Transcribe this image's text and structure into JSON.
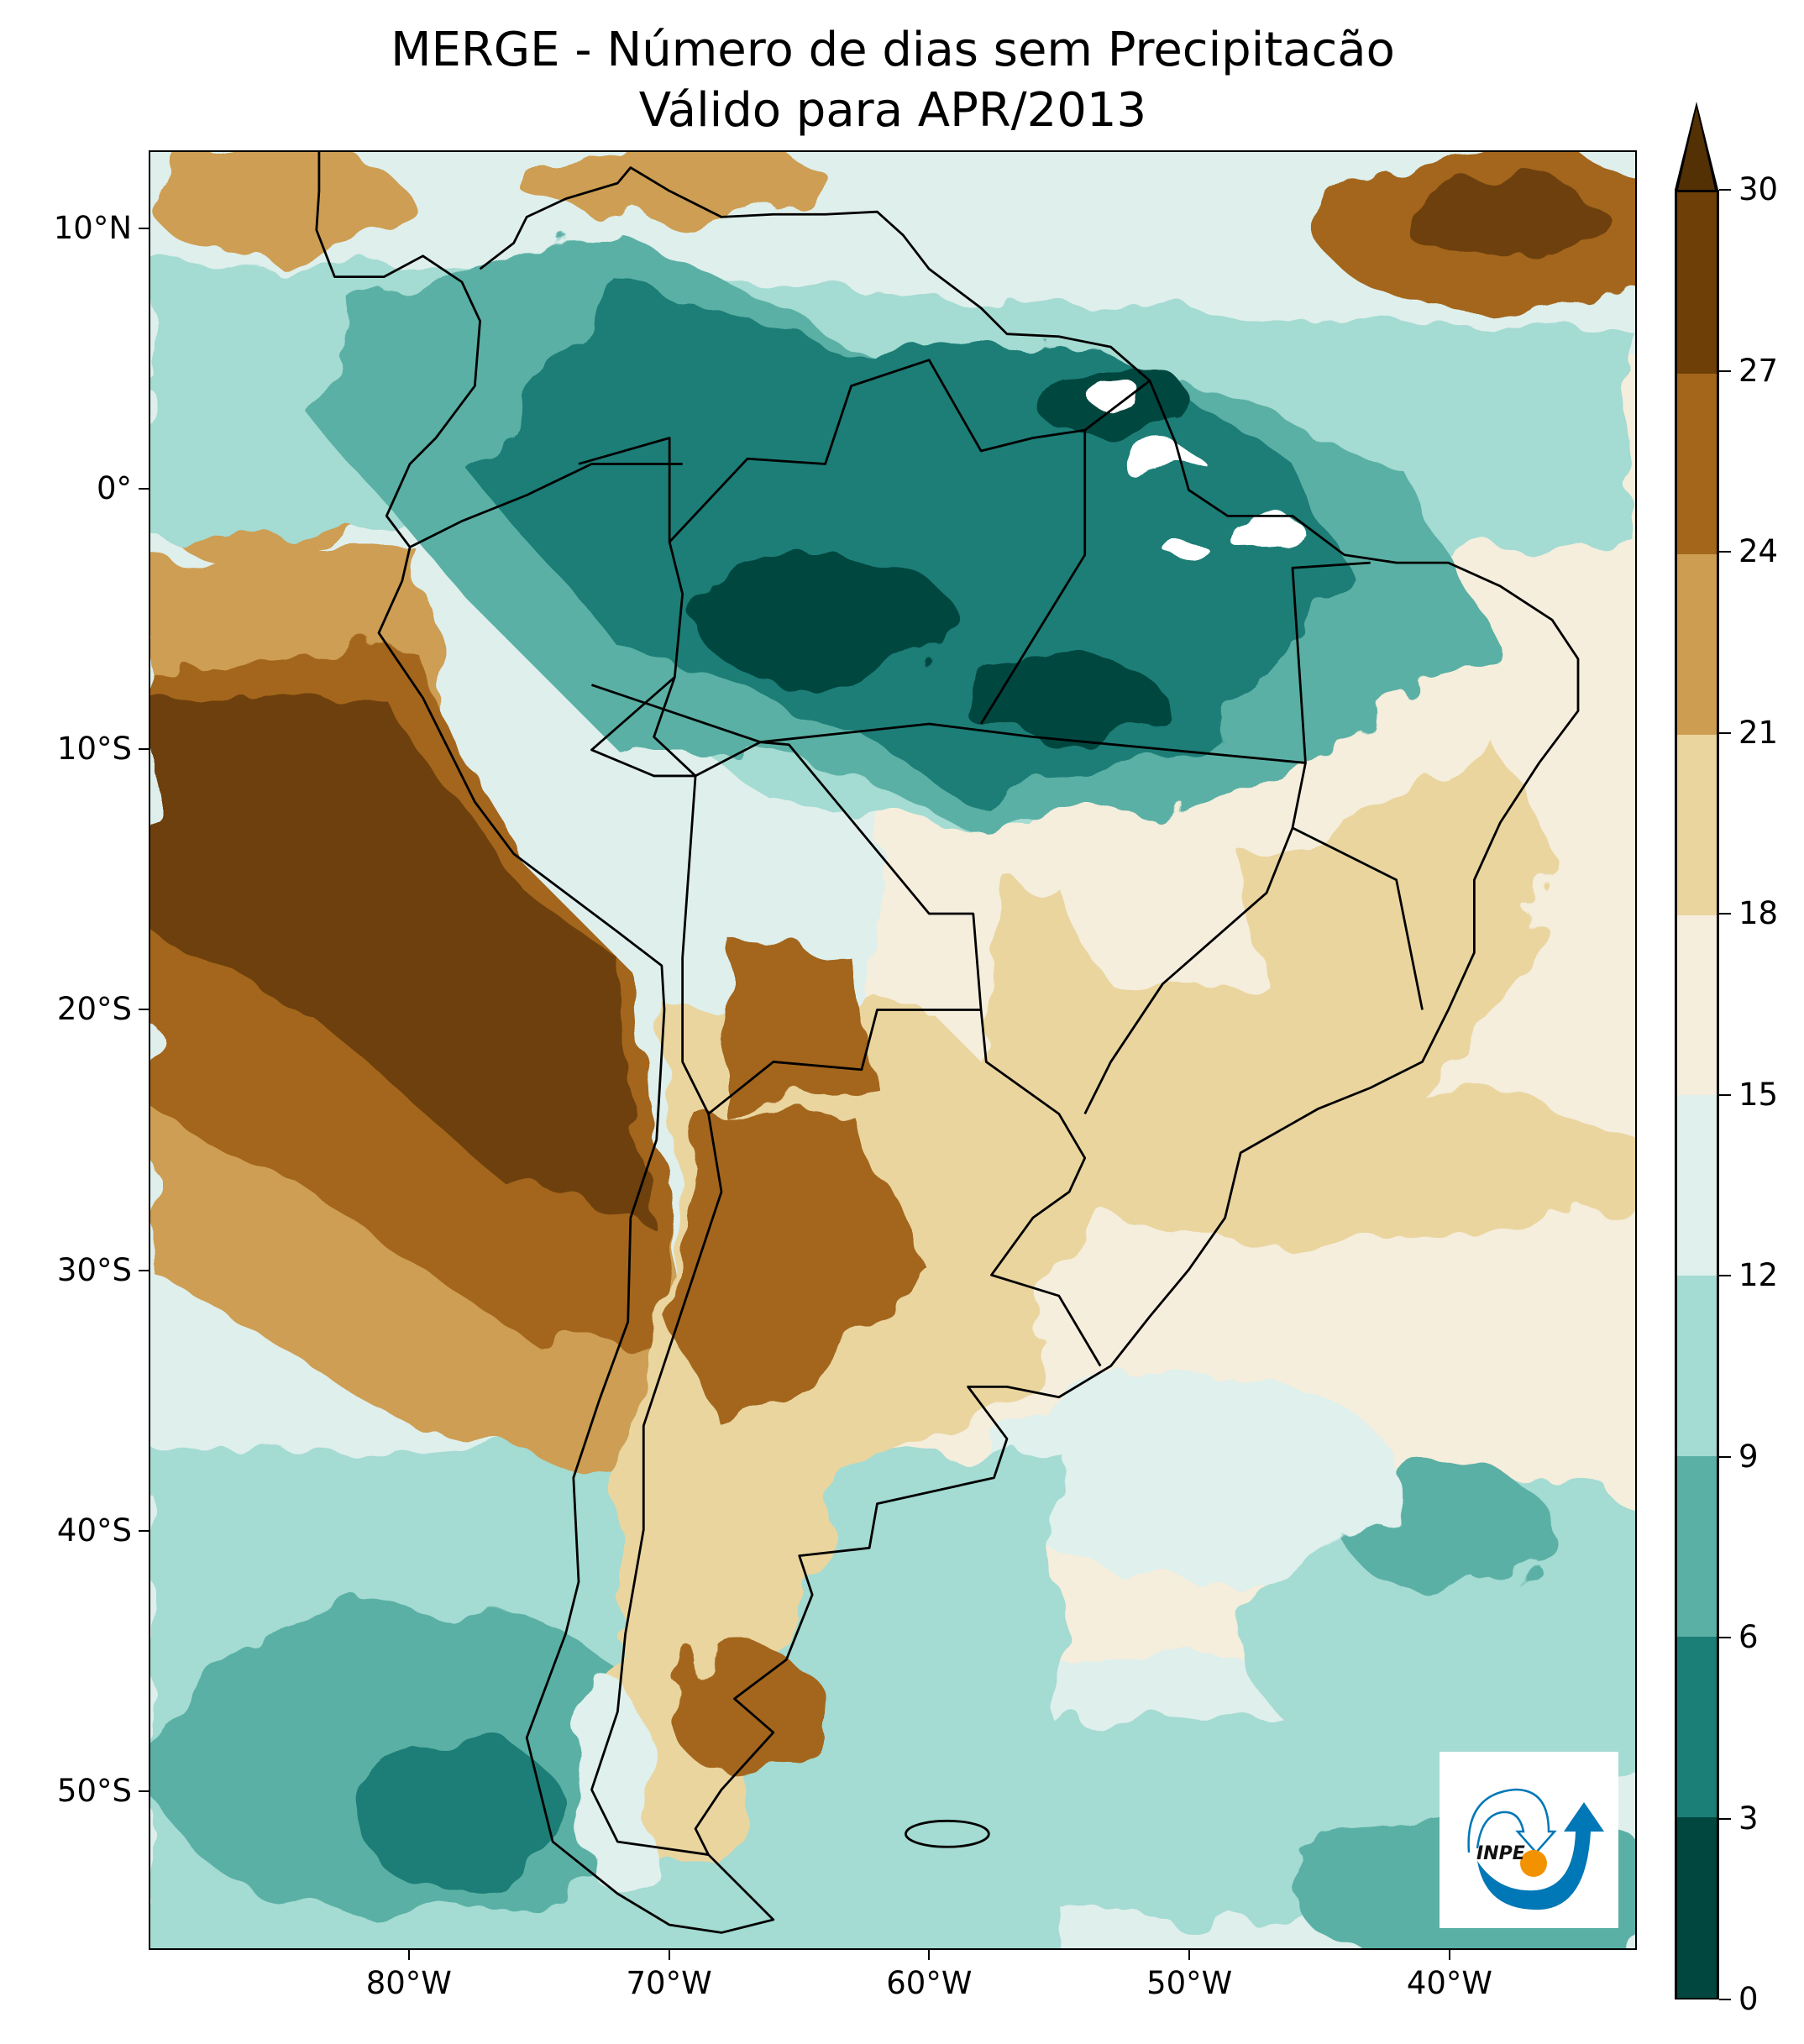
{
  "title": {
    "line1": "MERGE - Número de dias sem Precipitacão",
    "line2": "Válido para APR/2013"
  },
  "map": {
    "type": "contourf",
    "extent_lon": [
      -90,
      -32.8
    ],
    "extent_lat": [
      -56.1,
      13
    ],
    "lat_ticks": [
      {
        "value": 10,
        "label": "10°N"
      },
      {
        "value": 0,
        "label": "0°"
      },
      {
        "value": -10,
        "label": "10°S"
      },
      {
        "value": -20,
        "label": "20°S"
      },
      {
        "value": -30,
        "label": "30°S"
      },
      {
        "value": -40,
        "label": "40°S"
      },
      {
        "value": -50,
        "label": "50°S"
      }
    ],
    "lon_ticks": [
      {
        "value": -80,
        "label": "80°W"
      },
      {
        "value": -70,
        "label": "70°W"
      },
      {
        "value": -60,
        "label": "60°W"
      },
      {
        "value": -50,
        "label": "50°W"
      },
      {
        "value": -40,
        "label": "40°W"
      }
    ],
    "no_data_color": "#ffffff",
    "coastline_color": "#000000"
  },
  "colorbar": {
    "levels": [
      0,
      3,
      6,
      9,
      12,
      15,
      18,
      21,
      24,
      27,
      30
    ],
    "labels": [
      "0",
      "3",
      "6",
      "9",
      "12",
      "15",
      "18",
      "21",
      "24",
      "27",
      "30"
    ],
    "colors": [
      "#01473f",
      "#1b7e77",
      "#5ab0a5",
      "#a4dbd2",
      "#dff0ed",
      "#f5eedc",
      "#ead59f",
      "#cd9e52",
      "#a3661a",
      "#6e3f07"
    ],
    "extend_max_color": "#543005",
    "extend": "max"
  },
  "logo": {
    "text": "INPE",
    "blue": "#0077b6",
    "orange": "#f39200"
  }
}
